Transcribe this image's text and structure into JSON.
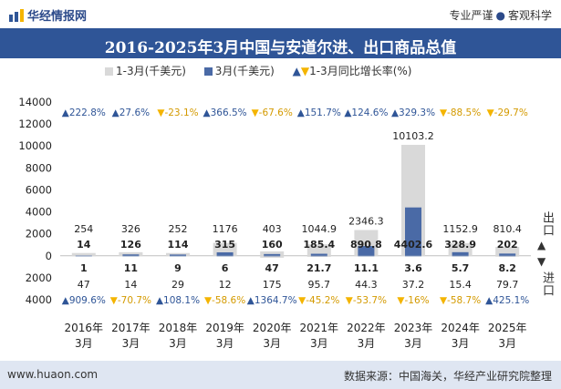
{
  "header": {
    "brand": "华经情报网",
    "tagline_left": "专业严谨",
    "tagline_right": "客观科学"
  },
  "colors": {
    "title_bg": "#2f5597",
    "bar_ytd": "#d9d9d9",
    "bar_month": "#4a6aa6",
    "up": "#2f5597",
    "down": "#f4b400",
    "footer_bg": "#dfe6f2"
  },
  "side_labels": {
    "top": "出口",
    "bottom": "进口"
  },
  "footer": {
    "url": "www.huaon.com",
    "source": "数据来源：中国海关，华经产业研究院整理"
  },
  "chart_data": {
    "type": "bar",
    "title": "2016-2025年3月中国与安道尔进、出口商品总值",
    "legend": [
      "1-3月(千美元)",
      "3月(千美元)",
      "1-3月同比增长率(%)"
    ],
    "categories": [
      "2016年\n3月",
      "2017年\n3月",
      "2018年\n3月",
      "2019年\n3月",
      "2020年\n3月",
      "2021年\n3月",
      "2022年\n3月",
      "2023年\n3月",
      "2024年\n3月",
      "2025年\n3月"
    ],
    "category_lines": [
      [
        "2016年",
        "3月"
      ],
      [
        "2017年",
        "3月"
      ],
      [
        "2018年",
        "3月"
      ],
      [
        "2019年",
        "3月"
      ],
      [
        "2020年",
        "3月"
      ],
      [
        "2021年",
        "3月"
      ],
      [
        "2022年",
        "3月"
      ],
      [
        "2023年",
        "3月"
      ],
      [
        "2024年",
        "3月"
      ],
      [
        "2025年",
        "3月"
      ]
    ],
    "ylim": [
      -4000,
      14000
    ],
    "yticks": [
      -4000,
      -2000,
      0,
      2000,
      4000,
      6000,
      8000,
      10000,
      12000,
      14000
    ],
    "ytick_labels": [
      "4000",
      "2000",
      "0",
      "2000",
      "4000",
      "6000",
      "8000",
      "10000",
      "12000",
      "14000"
    ],
    "export": {
      "ytd_values": [
        254,
        326,
        252,
        1176,
        403,
        1044.9,
        2346.3,
        10103.2,
        1152.9,
        810.4
      ],
      "ytd_labels": [
        "254",
        "326",
        "252",
        "1176",
        "403",
        "1044.9",
        "2346.3",
        "10103.2",
        "1152.9",
        "810.4"
      ],
      "month_values": [
        14,
        126,
        114,
        315,
        160,
        185.4,
        890.8,
        4402.6,
        328.9,
        202
      ],
      "month_labels": [
        "14",
        "126",
        "114",
        "315",
        "160",
        "185.4",
        "890.8",
        "4402.6",
        "328.9",
        "202"
      ],
      "growth_labels": [
        "222.8%",
        "27.6%",
        "-23.1%",
        "366.5%",
        "-67.6%",
        "151.7%",
        "124.6%",
        "329.3%",
        "-88.5%",
        "-29.7%"
      ],
      "growth_up": [
        true,
        true,
        false,
        true,
        false,
        true,
        true,
        true,
        false,
        false
      ]
    },
    "import": {
      "ytd_values": [
        47,
        14,
        29,
        12,
        175,
        95.7,
        44.3,
        37.2,
        15.4,
        79.7
      ],
      "ytd_labels": [
        "47",
        "14",
        "29",
        "12",
        "175",
        "95.7",
        "44.3",
        "37.2",
        "15.4",
        "79.7"
      ],
      "month_values": [
        1,
        11,
        9,
        6,
        47,
        21.7,
        11.1,
        3.6,
        5.7,
        8.2
      ],
      "month_labels": [
        "1",
        "11",
        "9",
        "6",
        "47",
        "21.7",
        "11.1",
        "3.6",
        "5.7",
        "8.2"
      ],
      "growth_labels": [
        "909.6%",
        "-70.7%",
        "108.1%",
        "-58.6%",
        "1364.7%",
        "-45.2%",
        "-53.7%",
        "-16%",
        "-58.7%",
        "425.1%"
      ],
      "growth_up": [
        true,
        false,
        true,
        false,
        true,
        false,
        false,
        false,
        false,
        true
      ]
    }
  }
}
